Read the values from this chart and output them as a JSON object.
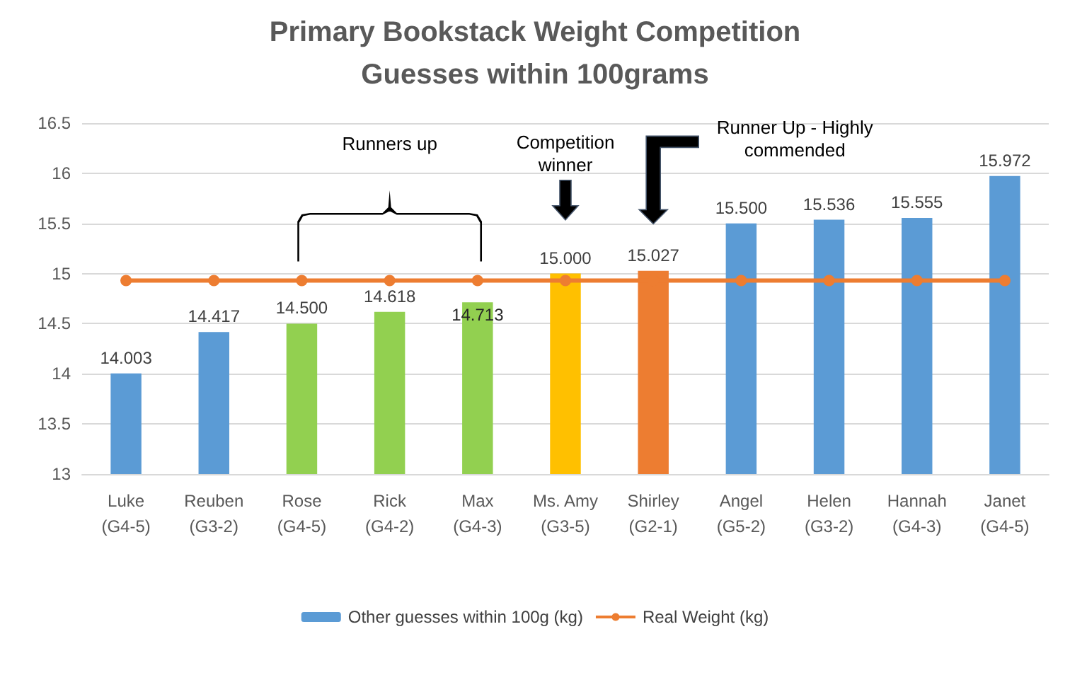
{
  "chart_data": {
    "type": "bar",
    "title": "Primary Bookstack Weight Competition",
    "subtitle": "Guesses within 100grams",
    "categories": [
      "Luke\n(G4-5)",
      "Reuben\n(G3-2)",
      "Rose\n(G4-5)",
      "Rick\n(G4-2)",
      "Max\n(G4-3)",
      "Ms. Amy\n(G3-5)",
      "Shirley\n(G2-1)",
      "Angel\n(G5-2)",
      "Helen\n(G3-2)",
      "Hannah\n(G4-3)",
      "Janet\n(G4-5)"
    ],
    "series": [
      {
        "name": "Other guesses within 100g (kg)",
        "color": "#5b9bd5",
        "colors": [
          "#5b9bd5",
          "#5b9bd5",
          "#92d050",
          "#92d050",
          "#92d050",
          "#ffc000",
          "#ed7d31",
          "#5b9bd5",
          "#5b9bd5",
          "#5b9bd5",
          "#5b9bd5"
        ],
        "values": [
          14.003,
          14.417,
          14.5,
          14.618,
          14.713,
          15.0,
          15.027,
          15.5,
          15.536,
          15.555,
          15.972
        ],
        "value_labels": [
          "14.003",
          "14.417",
          "14.500",
          "14.618",
          "14.713",
          "15.000",
          "15.027",
          "15.500",
          "15.536",
          "15.555",
          "15.972"
        ]
      },
      {
        "name": "Real Weight (kg)",
        "type": "line",
        "color": "#ed7d31",
        "marker": "circle",
        "values": [
          14.93,
          14.93,
          14.93,
          14.93,
          14.93,
          14.93,
          14.93,
          14.93,
          14.93,
          14.93,
          14.93
        ]
      }
    ],
    "ylim": [
      13,
      16.5
    ],
    "yticks": [
      13,
      13.5,
      14,
      14.5,
      15,
      15.5,
      16,
      16.5
    ],
    "grid": "y",
    "legend": "bottom",
    "annotations": [
      "Runners up",
      "Competition winner",
      "Runner Up - Highly commended"
    ]
  }
}
